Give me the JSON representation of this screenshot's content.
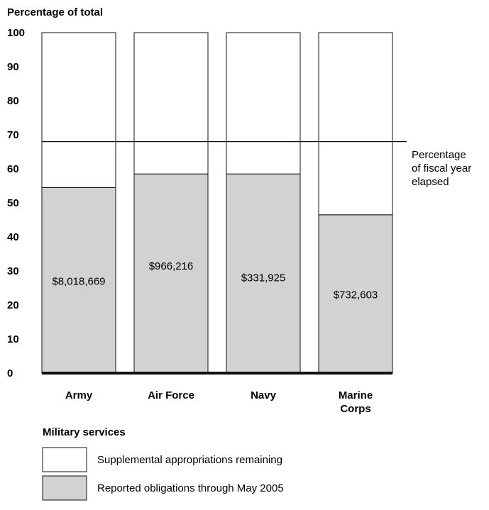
{
  "chart_data": {
    "type": "bar",
    "stacked": true,
    "ylabel": "Percentage of total",
    "xlabel": "Military services",
    "ylim": [
      0,
      100
    ],
    "yticks": [
      "0",
      "10",
      "20",
      "30",
      "40",
      "50",
      "60",
      "70",
      "80",
      "90",
      "100"
    ],
    "categories": [
      [
        "Army"
      ],
      [
        "Air Force"
      ],
      [
        "Navy"
      ],
      [
        "Marine",
        "Corps"
      ]
    ],
    "series": [
      {
        "name": "Reported obligations through May 2005",
        "color": "#d2d2d2",
        "values": [
          54.5,
          58.5,
          58.5,
          46.5
        ],
        "labels": [
          "$8,018,669",
          "$966,216",
          "$331,925",
          "$732,603"
        ],
        "label_y": [
          27,
          31.5,
          28,
          23
        ]
      },
      {
        "name": "Supplemental appropriations remaining",
        "color": "#ffffff",
        "values": [
          45.5,
          41.5,
          41.5,
          53.5
        ]
      }
    ],
    "reference_line": {
      "value": 68,
      "label": [
        "Percentage",
        "of fiscal year",
        "elapsed"
      ]
    },
    "legend": {
      "placement": "bottom-left",
      "items": [
        "Supplemental appropriations remaining",
        "Reported obligations through May 2005"
      ]
    },
    "grid": false
  }
}
